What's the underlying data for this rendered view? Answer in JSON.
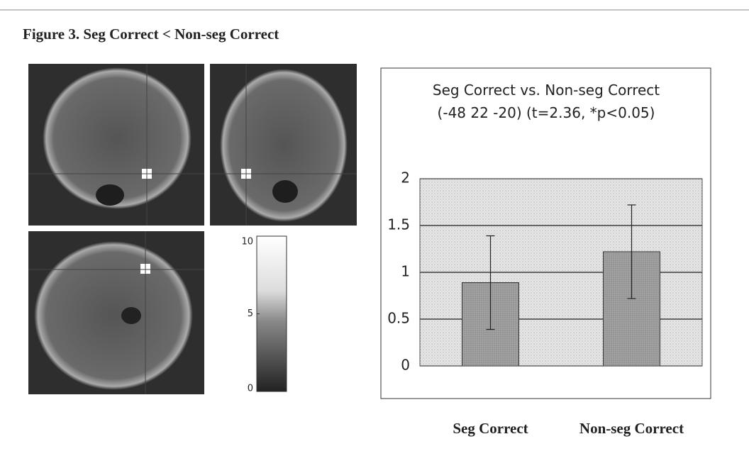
{
  "figure": {
    "title": "Figure 3. Seg Correct < Non-seg Correct"
  },
  "colorbar": {
    "lim": [
      0,
      10
    ],
    "ticks": [
      0,
      5,
      10
    ]
  },
  "chart_data": {
    "type": "bar",
    "title": "Seg Correct vs. Non-seg Correct",
    "subtitle": "(-48 22 -20) (t=2.36, *p<0.05)",
    "categories": [
      "Seg Correct",
      "Non-seg Correct"
    ],
    "values": [
      0.89,
      1.22
    ],
    "errors": [
      0.5,
      0.5
    ],
    "color": "#9a9a9a",
    "ylim": [
      0,
      2
    ],
    "yticks": [
      0,
      0.5,
      1,
      1.5,
      2
    ],
    "grid": true
  }
}
